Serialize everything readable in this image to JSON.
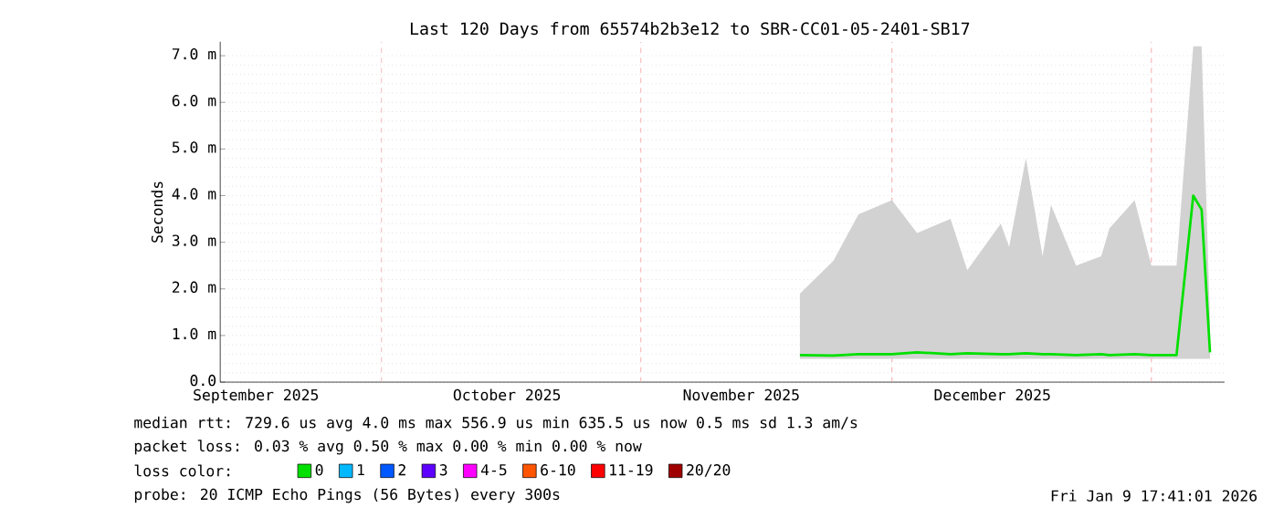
{
  "chart_data": {
    "type": "line",
    "title": "Last 120 Days from 65574b2b3e12 to SBR-CC01-05-2401-SB17",
    "ylabel": "Seconds",
    "legend_title": "loss color:",
    "legend": "bottom",
    "grid": true,
    "xlim": [
      "2025-09-11T17:41",
      "2026-01-09T17:41"
    ],
    "xticks": [
      {
        "value": "2025-09-16",
        "label": "September 2025"
      },
      {
        "value": "2025-10-16",
        "label": "October 2025"
      },
      {
        "value": "2025-11-13",
        "label": "November 2025"
      },
      {
        "value": "2025-12-13",
        "label": "December 2025"
      }
    ],
    "ylim": [
      0,
      7.3
    ],
    "yticks": [
      {
        "value": 0,
        "label": "0.0"
      },
      {
        "value": 1,
        "label": "1.0 m"
      },
      {
        "value": 2,
        "label": "2.0 m"
      },
      {
        "value": 3,
        "label": "3.0 m"
      },
      {
        "value": 4,
        "label": "4.0 m"
      },
      {
        "value": 5,
        "label": "5.0 m"
      },
      {
        "value": 6,
        "label": "6.0 m"
      },
      {
        "value": 7,
        "label": "7.0 m"
      }
    ],
    "ref_lines": [
      {
        "axis": "x",
        "value": "2025-10-01",
        "color": "#f4a0a0",
        "line_style": "dashed"
      },
      {
        "axis": "x",
        "value": "2025-11-01",
        "color": "#f4a0a0",
        "line_style": "dashed"
      },
      {
        "axis": "x",
        "value": "2025-12-01",
        "color": "#f4a0a0",
        "line_style": "dashed"
      },
      {
        "axis": "x",
        "value": "2026-01-01",
        "color": "#f4a0a0",
        "line_style": "dashed"
      }
    ],
    "series": [
      {
        "name": "0",
        "color": "#00e000",
        "x": [
          "2025-11-20",
          "2025-11-24",
          "2025-11-27",
          "2025-12-01",
          "2025-12-04",
          "2025-12-08",
          "2025-12-10",
          "2025-12-14",
          "2025-12-15",
          "2025-12-17",
          "2025-12-19",
          "2025-12-20",
          "2025-12-23",
          "2025-12-26",
          "2025-12-27",
          "2025-12-30",
          "2026-01-01",
          "2026-01-04",
          "2026-01-06",
          "2026-01-07",
          "2026-01-08"
        ],
        "values": [
          0.58,
          0.57,
          0.6,
          0.6,
          0.64,
          0.6,
          0.62,
          0.6,
          0.6,
          0.62,
          0.6,
          0.6,
          0.58,
          0.6,
          0.58,
          0.6,
          0.58,
          0.58,
          4.0,
          3.7,
          0.64
        ],
        "lower": [
          0.5,
          0.5,
          0.5,
          0.5,
          0.5,
          0.5,
          0.5,
          0.5,
          0.5,
          0.5,
          0.5,
          0.5,
          0.5,
          0.5,
          0.5,
          0.5,
          0.5,
          0.5,
          0.5,
          0.5,
          0.5
        ],
        "upper": [
          1.9,
          2.6,
          3.6,
          3.9,
          3.2,
          3.5,
          2.4,
          3.4,
          2.9,
          4.8,
          2.7,
          3.8,
          2.5,
          2.7,
          3.3,
          3.9,
          2.5,
          2.5,
          7.2,
          7.2,
          1.3
        ]
      },
      {
        "name": "1",
        "color": "#00b8ff"
      },
      {
        "name": "2",
        "color": "#0059ff"
      },
      {
        "name": "3",
        "color": "#5e00ff"
      },
      {
        "name": "4-5",
        "color": "#ff00ff"
      },
      {
        "name": "6-10",
        "color": "#ff5500"
      },
      {
        "name": "11-19",
        "color": "#ff0000"
      },
      {
        "name": "20/20",
        "color": "#a10000"
      }
    ],
    "annotations": [
      "median rtt:  729.6 us avg   4.0 ms max  556.9 us min  635.5 us now   0.5 ms sd   1.3   am/s",
      "packet loss: 0.03 % avg  0.50 % max  0.00 % min  0.00 % now",
      "probe:       20 ICMP Echo Pings (56 Bytes) every 300s",
      "Fri Jan  9 17:41:01 2026"
    ]
  }
}
